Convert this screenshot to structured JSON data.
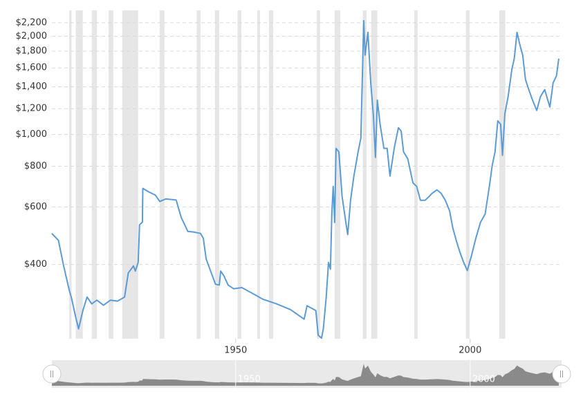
{
  "chart_data": {
    "type": "line",
    "color": "#5b9bd5",
    "log_scale": true,
    "grid": true,
    "xlim": [
      1910.8,
      2019.2
    ],
    "xticks": [
      1950,
      2000
    ],
    "ylim": [
      237,
      2400
    ],
    "yticks": [
      {
        "value": 400,
        "label": "$400"
      },
      {
        "value": 600,
        "label": "$600"
      },
      {
        "value": 800,
        "label": "$800"
      },
      {
        "value": 1000,
        "label": "$1,000"
      },
      {
        "value": 1200,
        "label": "$1,200"
      },
      {
        "value": 1400,
        "label": "$1,400"
      },
      {
        "value": 1600,
        "label": "$1,600"
      },
      {
        "value": 1800,
        "label": "$1,800"
      },
      {
        "value": 2000,
        "label": "$2,000"
      },
      {
        "value": 2200,
        "label": "$2,200"
      }
    ],
    "recessions": [
      [
        1914.5,
        1915.0
      ],
      [
        1915.9,
        1917.4
      ],
      [
        1919.3,
        1920.4
      ],
      [
        1922.9,
        1923.9
      ],
      [
        1925.8,
        1929.2
      ],
      [
        1933.8,
        1934.8
      ],
      [
        1941.7,
        1942.5
      ],
      [
        1945.6,
        1946.5
      ],
      [
        1950.4,
        1951.2
      ],
      [
        1954.6,
        1955.2
      ],
      [
        1957.1,
        1958.0
      ],
      [
        1967.3,
        1968.0
      ],
      [
        1971.1,
        1972.3
      ],
      [
        1977.1,
        1977.9
      ],
      [
        1978.9,
        1980.2
      ],
      [
        1988.1,
        1988.8
      ],
      [
        1999.1,
        1999.9
      ],
      [
        2006.2,
        2007.5
      ]
    ],
    "x": [
      1910.8,
      1912.2,
      1913.3,
      1914.5,
      1915.0,
      1915.9,
      1916.5,
      1917.4,
      1918.3,
      1919.3,
      1920.4,
      1921.8,
      1923.3,
      1924.8,
      1926.3,
      1927.1,
      1928.2,
      1928.6,
      1929.2,
      1929.5,
      1930.1,
      1930.2,
      1931.4,
      1932.9,
      1933.8,
      1935.1,
      1937.3,
      1938.4,
      1939.8,
      1941.0,
      1942.5,
      1943.1,
      1943.7,
      1944.8,
      1945.7,
      1946.5,
      1946.8,
      1947.5,
      1948.4,
      1949.6,
      1951.3,
      1954.3,
      1955.8,
      1958.7,
      1961.7,
      1964.6,
      1965.2,
      1967.1,
      1967.6,
      1968.3,
      1968.7,
      1969.3,
      1969.8,
      1970.2,
      1970.5,
      1970.8,
      1971.1,
      1971.4,
      1972.0,
      1972.7,
      1973.5,
      1973.9,
      1974.5,
      1975.2,
      1976.1,
      1976.7,
      1977.3,
      1977.6,
      1978.2,
      1978.8,
      1979.4,
      1979.8,
      1980.2,
      1980.8,
      1981.6,
      1982.3,
      1982.9,
      1983.8,
      1984.7,
      1985.3,
      1985.8,
      1986.7,
      1987.8,
      1988.6,
      1989.4,
      1990.4,
      1991.2,
      1991.9,
      1992.9,
      1993.8,
      1994.7,
      1995.6,
      1996.3,
      1997.1,
      1997.8,
      1998.5,
      1999.4,
      2000.3,
      2001.2,
      2002.2,
      2003.2,
      2004.1,
      2004.7,
      2005.3,
      2005.9,
      2006.5,
      2006.9,
      2007.4,
      2008.1,
      2008.9,
      2009.4,
      2010.0,
      2010.6,
      2011.2,
      2011.8,
      2012.5,
      2013.3,
      2014.2,
      2015.0,
      2015.9,
      2017.0,
      2017.7,
      2018.4,
      2018.9
    ],
    "values": [
      498,
      474,
      396,
      334,
      315,
      275,
      254,
      289,
      318,
      303,
      311,
      300,
      311,
      309,
      318,
      377,
      396,
      382,
      406,
      529,
      539,
      684,
      668,
      652,
      624,
      635,
      630,
      557,
      505,
      503,
      498,
      481,
      416,
      377,
      348,
      346,
      382,
      369,
      346,
      337,
      340,
      322,
      313,
      303,
      291,
      272,
      299,
      289,
      243,
      238,
      255,
      318,
      406,
      387,
      571,
      694,
      538,
      907,
      885,
      645,
      538,
      494,
      629,
      746,
      885,
      975,
      2232,
      1750,
      2056,
      1440,
      1129,
      851,
      1275,
      1075,
      907,
      907,
      746,
      907,
      1049,
      1024,
      885,
      843,
      711,
      694,
      629,
      629,
      645,
      661,
      677,
      661,
      629,
      585,
      518,
      470,
      437,
      410,
      383,
      426,
      481,
      538,
      571,
      694,
      803,
      885,
      1102,
      1075,
      864,
      1157,
      1307,
      1587,
      1708,
      2056,
      1883,
      1750,
      1475,
      1372,
      1275,
      1185,
      1307,
      1372,
      1214,
      1440,
      1512,
      1708
    ]
  }
}
